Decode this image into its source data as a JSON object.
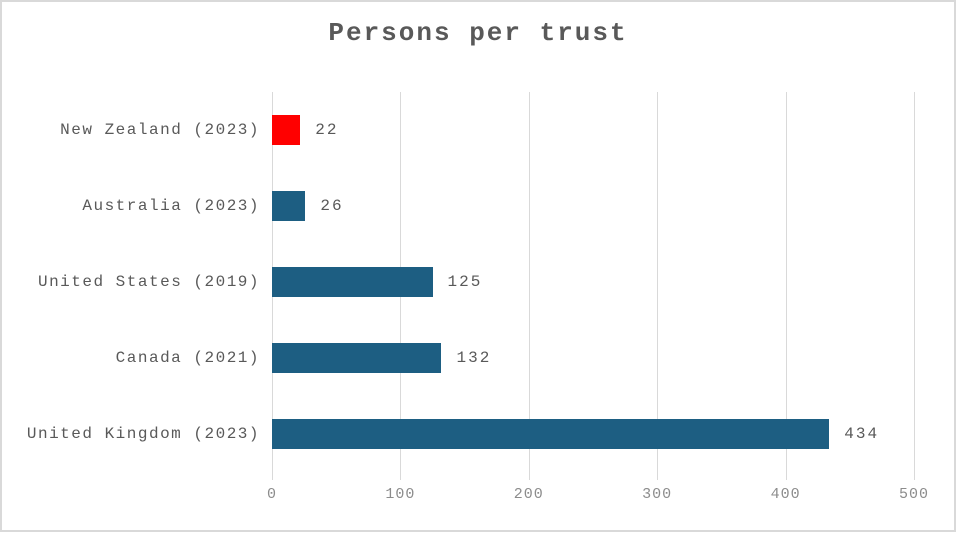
{
  "chart_data": {
    "type": "bar",
    "orientation": "horizontal",
    "title": "Persons per trust",
    "categories": [
      "New Zealand (2023)",
      "Australia (2023)",
      "United States (2019)",
      "Canada (2021)",
      "United Kingdom (2023)"
    ],
    "values": [
      22,
      26,
      125,
      132,
      434
    ],
    "value_labels": [
      "22",
      "26",
      "125",
      "132",
      "434"
    ],
    "bar_colors": [
      "#ff0000",
      "#1d5e82",
      "#1d5e82",
      "#1d5e82",
      "#1d5e82"
    ],
    "xlim": [
      0,
      500
    ],
    "x_ticks": [
      0,
      100,
      200,
      300,
      400,
      500
    ],
    "x_tick_labels": [
      "0",
      "100",
      "200",
      "300",
      "400",
      "500"
    ],
    "grid": true,
    "legend": "none",
    "colors": {
      "default_bar": "#1d5e82",
      "highlight_bar": "#ff0000",
      "gridline": "#d9d9d9",
      "title_text": "#595959",
      "category_text": "#595959",
      "value_text": "#595959",
      "tick_text": "#8c8c8c",
      "frame_border": "#d9d9d9",
      "background": "#ffffff"
    }
  }
}
